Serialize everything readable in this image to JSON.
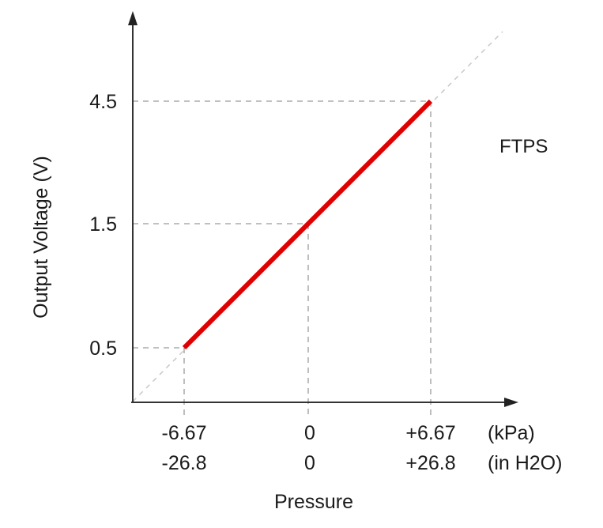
{
  "chart_data": {
    "type": "line",
    "xlabel": "Pressure",
    "ylabel": "Output Voltage (V)",
    "annotation": "FTPS",
    "x_units": [
      "(kPa)",
      "(in H2O)"
    ],
    "x_ticks_kpa": [
      "-6.67",
      "0",
      "+6.67"
    ],
    "x_ticks_inh2o": [
      "-26.8",
      "0",
      "+26.8"
    ],
    "y_ticks": [
      "0.5",
      "1.5",
      "4.5"
    ],
    "series": [
      {
        "color": "#e00000",
        "x": [
          -6.67,
          6.67
        ],
        "y": [
          0.5,
          4.5
        ]
      }
    ],
    "reference_points": [
      {
        "x": -6.67,
        "y": 0.5
      },
      {
        "x": 0,
        "y": 1.5
      },
      {
        "x": 6.67,
        "y": 4.5
      }
    ],
    "grid": false
  }
}
